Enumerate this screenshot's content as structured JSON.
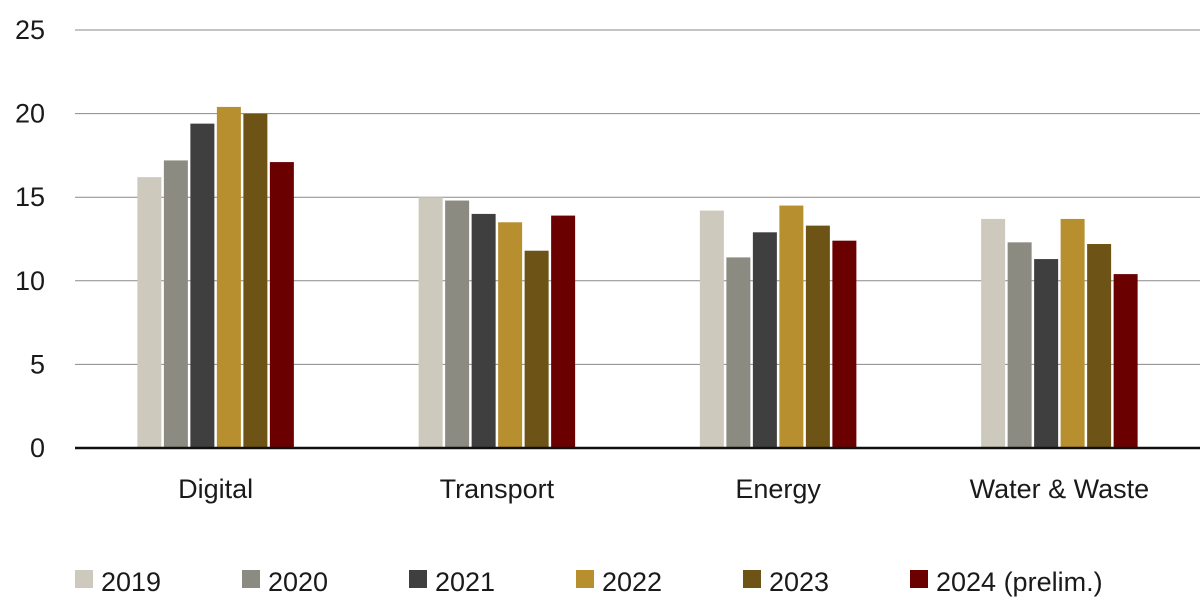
{
  "chart_data": {
    "type": "bar",
    "categories": [
      "Digital",
      "Transport",
      "Energy",
      "Water & Waste"
    ],
    "series": [
      {
        "name": "2019",
        "color": "#cdcabd",
        "values": [
          16.2,
          15.0,
          14.2,
          13.7
        ]
      },
      {
        "name": "2020",
        "color": "#8c8b82",
        "values": [
          17.2,
          14.8,
          11.4,
          12.3
        ]
      },
      {
        "name": "2021",
        "color": "#3f3f3f",
        "values": [
          19.4,
          14.0,
          12.9,
          11.3
        ]
      },
      {
        "name": "2022",
        "color": "#b78f2e",
        "values": [
          20.4,
          13.5,
          14.5,
          13.7
        ]
      },
      {
        "name": "2023",
        "color": "#6e5316",
        "values": [
          20.0,
          11.8,
          13.3,
          12.2
        ]
      },
      {
        "name": "2024 (prelim.)",
        "color": "#6a0000",
        "values": [
          17.1,
          13.9,
          12.4,
          10.4
        ]
      }
    ],
    "ylim": [
      0,
      25
    ],
    "yticks": [
      0,
      5,
      10,
      15,
      20,
      25
    ],
    "grid": true,
    "legend_position": "bottom"
  }
}
